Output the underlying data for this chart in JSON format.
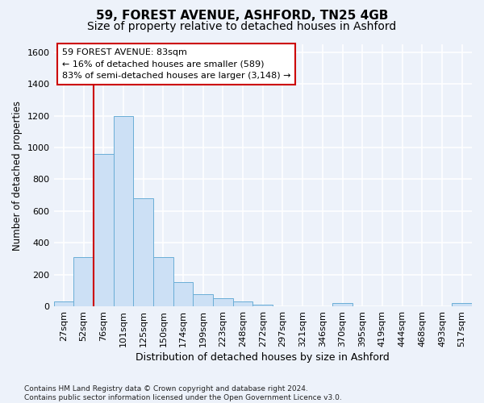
{
  "title_line1": "59, FOREST AVENUE, ASHFORD, TN25 4GB",
  "title_line2": "Size of property relative to detached houses in Ashford",
  "xlabel": "Distribution of detached houses by size in Ashford",
  "ylabel": "Number of detached properties",
  "footnote": "Contains HM Land Registry data © Crown copyright and database right 2024.\nContains public sector information licensed under the Open Government Licence v3.0.",
  "bar_labels": [
    "27sqm",
    "52sqm",
    "76sqm",
    "101sqm",
    "125sqm",
    "150sqm",
    "174sqm",
    "199sqm",
    "223sqm",
    "248sqm",
    "272sqm",
    "297sqm",
    "321sqm",
    "346sqm",
    "370sqm",
    "395sqm",
    "419sqm",
    "444sqm",
    "468sqm",
    "493sqm",
    "517sqm"
  ],
  "bar_values": [
    30,
    310,
    960,
    1200,
    680,
    310,
    155,
    75,
    50,
    30,
    10,
    2,
    2,
    2,
    20,
    2,
    2,
    2,
    2,
    2,
    20
  ],
  "bar_color": "#cce0f5",
  "bar_edge_color": "#6aaed6",
  "vline_color": "#cc0000",
  "vline_x": 1.5,
  "annotation_line1": "59 FOREST AVENUE: 83sqm",
  "annotation_line2": "← 16% of detached houses are smaller (589)",
  "annotation_line3": "83% of semi-detached houses are larger (3,148) →",
  "annotation_box_facecolor": "#ffffff",
  "annotation_box_edgecolor": "#cc0000",
  "ylim": [
    0,
    1650
  ],
  "yticks": [
    0,
    200,
    400,
    600,
    800,
    1000,
    1200,
    1400,
    1600
  ],
  "background_color": "#edf2fa",
  "grid_color": "#ffffff",
  "title_fontsize": 11,
  "subtitle_fontsize": 10,
  "xlabel_fontsize": 9,
  "ylabel_fontsize": 8.5,
  "tick_fontsize": 8,
  "annotation_fontsize": 8,
  "footnote_fontsize": 6.5
}
